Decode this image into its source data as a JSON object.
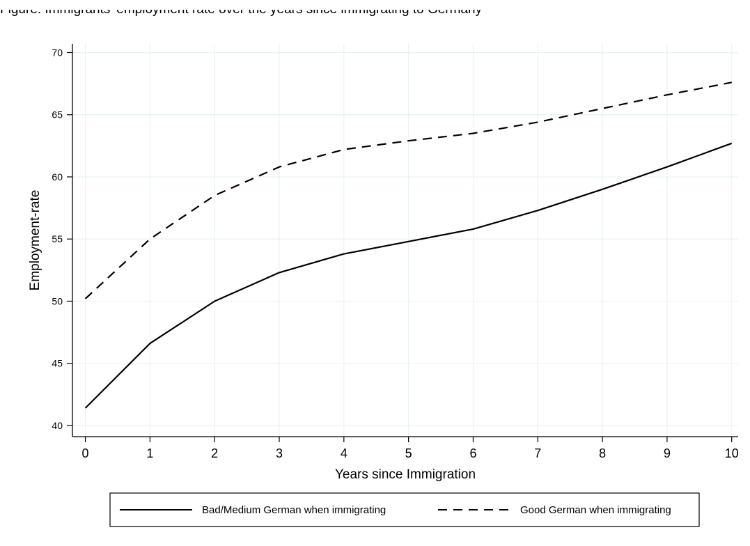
{
  "caption": "Figure: Immigrants' employment rate over the years since immigrating to Germany",
  "chart_data": {
    "type": "line",
    "title": "",
    "xlabel": "Years since Immigration",
    "ylabel": "Employment-rate",
    "x": [
      0,
      1,
      2,
      3,
      4,
      5,
      6,
      7,
      8,
      9,
      10
    ],
    "xlim": [
      -0.2,
      10.1
    ],
    "ylim": [
      39.1,
      70.7
    ],
    "xticks": [
      0,
      1,
      2,
      3,
      4,
      5,
      6,
      7,
      8,
      9,
      10
    ],
    "yticks": [
      40,
      45,
      50,
      55,
      60,
      65,
      70
    ],
    "grid": true,
    "legend_position": "bottom",
    "series": [
      {
        "name": "Bad/Medium German when immigrating",
        "line_style": "solid",
        "color": "#000000",
        "values": [
          41.4,
          46.6,
          50.0,
          52.3,
          53.8,
          54.8,
          55.8,
          57.3,
          59.0,
          60.8,
          62.7
        ]
      },
      {
        "name": "Good German when immigrating",
        "line_style": "dashed",
        "color": "#000000",
        "values": [
          50.2,
          55.0,
          58.5,
          60.8,
          62.2,
          62.9,
          63.5,
          64.4,
          65.5,
          66.6,
          67.6
        ]
      }
    ]
  }
}
